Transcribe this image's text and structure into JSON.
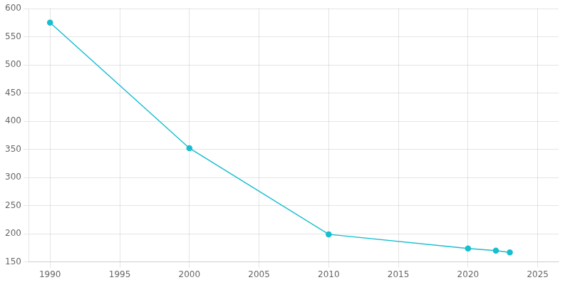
{
  "chart_data": {
    "type": "line",
    "x": [
      1990,
      2000,
      2010,
      2020,
      2022,
      2023
    ],
    "values": [
      575,
      352,
      199,
      174,
      170,
      167
    ],
    "color": "#17becf",
    "marker": "circle",
    "xlim": [
      1988.5,
      2026.5
    ],
    "xticks": [
      1990,
      1995,
      2000,
      2005,
      2010,
      2015,
      2020,
      2025
    ],
    "ylim": [
      150,
      600
    ],
    "yticks": [
      150,
      200,
      250,
      300,
      350,
      400,
      450,
      500,
      550,
      600
    ],
    "grid": true
  }
}
